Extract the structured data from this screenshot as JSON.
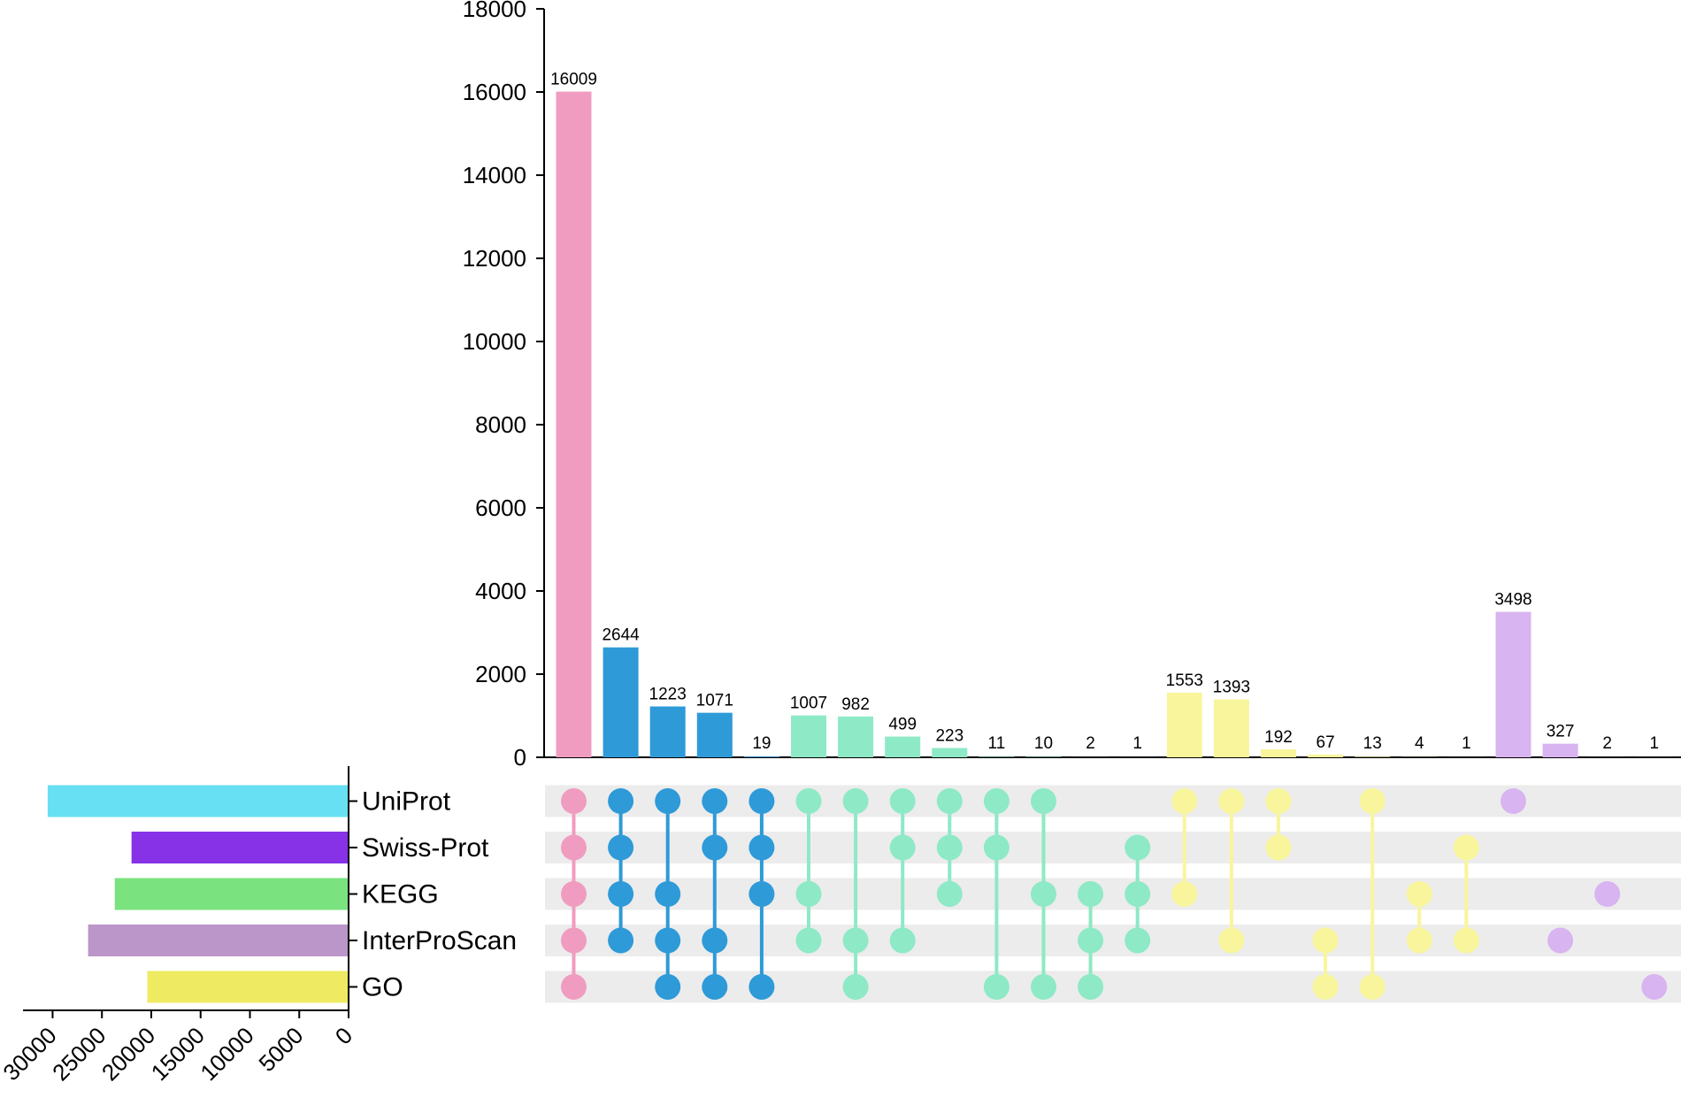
{
  "chart_data": {
    "type": "upset",
    "sets": [
      {
        "name": "UniProt",
        "size": 30500,
        "color": "#66e0f2"
      },
      {
        "name": "Swiss-Prot",
        "size": 22000,
        "color": "#8732e6"
      },
      {
        "name": "KEGG",
        "size": 23700,
        "color": "#7ae27e"
      },
      {
        "name": "InterProScan",
        "size": 26400,
        "color": "#bb96c9"
      },
      {
        "name": "GO",
        "size": 20400,
        "color": "#eeeb63"
      }
    ],
    "set_size_axis": {
      "ticks": [
        30000,
        25000,
        20000,
        15000,
        10000,
        5000,
        0
      ],
      "max": 33000
    },
    "intersection_axis": {
      "ticks": [
        0,
        2000,
        4000,
        6000,
        8000,
        10000,
        12000,
        14000,
        16000,
        18000
      ],
      "max": 18000
    },
    "intersections": [
      {
        "value": 16009,
        "label": "16009",
        "sets": [
          0,
          1,
          2,
          3,
          4
        ],
        "color": "#f09cc0"
      },
      {
        "value": 2644,
        "label": "2644",
        "sets": [
          0,
          1,
          2,
          3
        ],
        "color": "#2e9ad8"
      },
      {
        "value": 1223,
        "label": "1223",
        "sets": [
          0,
          2,
          3,
          4
        ],
        "color": "#2e9ad8"
      },
      {
        "value": 1071,
        "label": "1071",
        "sets": [
          0,
          1,
          3,
          4
        ],
        "color": "#2e9ad8"
      },
      {
        "value": 19,
        "label": "19",
        "sets": [
          0,
          1,
          2,
          4
        ],
        "color": "#2e9ad8"
      },
      {
        "value": 1007,
        "label": "1007",
        "sets": [
          0,
          2,
          3
        ],
        "color": "#8ee9c6"
      },
      {
        "value": 982,
        "label": "982",
        "sets": [
          0,
          3,
          4
        ],
        "color": "#8ee9c6"
      },
      {
        "value": 499,
        "label": "499",
        "sets": [
          0,
          1,
          3
        ],
        "color": "#8ee9c6"
      },
      {
        "value": 223,
        "label": "223",
        "sets": [
          0,
          1,
          2
        ],
        "color": "#8ee9c6"
      },
      {
        "value": 11,
        "label": "11",
        "sets": [
          0,
          1,
          4
        ],
        "color": "#8ee9c6"
      },
      {
        "value": 10,
        "label": "10",
        "sets": [
          0,
          2,
          4
        ],
        "color": "#8ee9c6"
      },
      {
        "value": 2,
        "label": "2",
        "sets": [
          2,
          3,
          4
        ],
        "color": "#8ee9c6"
      },
      {
        "value": 1,
        "label": "1",
        "sets": [
          1,
          2,
          3
        ],
        "color": "#8ee9c6"
      },
      {
        "value": 1553,
        "label": "1553",
        "sets": [
          0,
          2
        ],
        "color": "#f8f59c"
      },
      {
        "value": 1393,
        "label": "1393",
        "sets": [
          0,
          3
        ],
        "color": "#f8f59c"
      },
      {
        "value": 192,
        "label": "192",
        "sets": [
          0,
          1
        ],
        "color": "#f8f59c"
      },
      {
        "value": 67,
        "label": "67",
        "sets": [
          3,
          4
        ],
        "color": "#f8f59c"
      },
      {
        "value": 13,
        "label": "13",
        "sets": [
          0,
          4
        ],
        "color": "#f8f59c"
      },
      {
        "value": 4,
        "label": "4",
        "sets": [
          2,
          3
        ],
        "color": "#f8f59c"
      },
      {
        "value": 1,
        "label": "1",
        "sets": [
          1,
          3
        ],
        "color": "#f8f59c"
      },
      {
        "value": 3498,
        "label": "3498",
        "sets": [
          0
        ],
        "color": "#d8b4f0"
      },
      {
        "value": 327,
        "label": "327",
        "sets": [
          3
        ],
        "color": "#d8b4f0"
      },
      {
        "value": 2,
        "label": "2",
        "sets": [
          2
        ],
        "color": "#d8b4f0"
      },
      {
        "value": 1,
        "label": "1",
        "sets": [
          4
        ],
        "color": "#d8b4f0"
      }
    ]
  }
}
